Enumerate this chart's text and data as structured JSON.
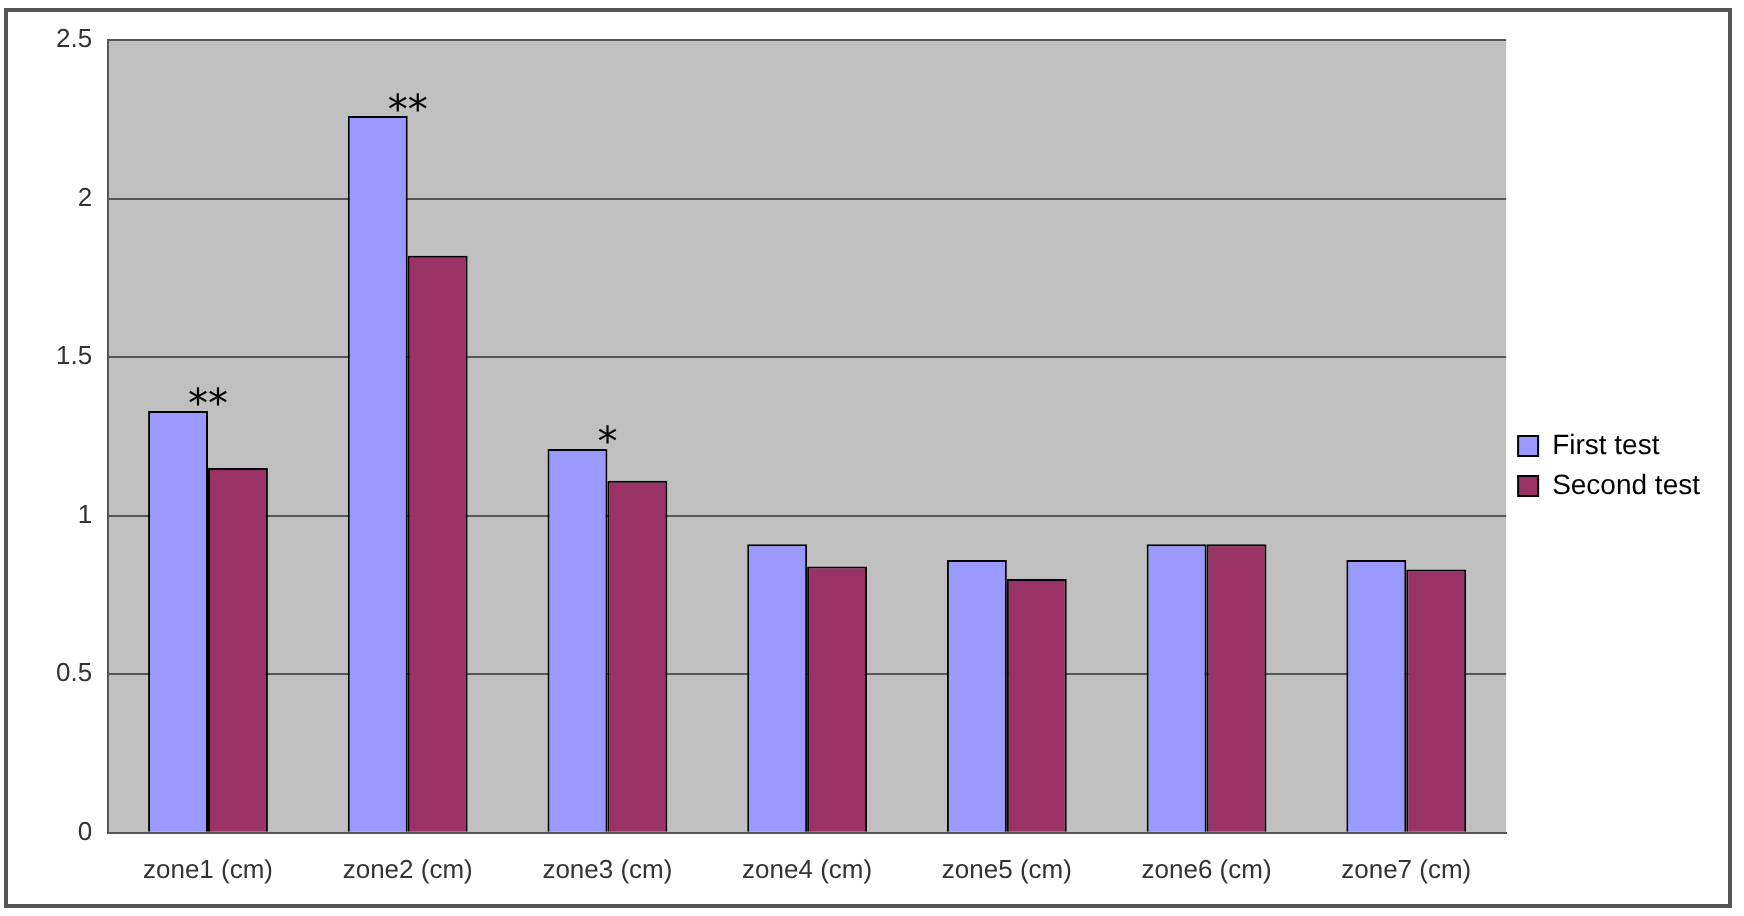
{
  "chart_data": {
    "type": "bar",
    "categories": [
      "zone1 (cm)",
      "zone2 (cm)",
      "zone3 (cm)",
      "zone4 (cm)",
      "zone5 (cm)",
      "zone6 (cm)",
      "zone7 (cm)"
    ],
    "series": [
      {
        "name": "First test",
        "color": "#9999ff",
        "values": [
          1.33,
          2.26,
          1.21,
          0.91,
          0.86,
          0.91,
          0.86
        ]
      },
      {
        "name": "Second test",
        "color": "#993366",
        "values": [
          1.15,
          1.82,
          1.11,
          0.84,
          0.8,
          0.91,
          0.83
        ]
      }
    ],
    "ylim": [
      0,
      2.5
    ],
    "yticks": [
      0,
      0.5,
      1,
      1.5,
      2,
      2.5
    ],
    "grid": "y",
    "legend": "right",
    "annotations": [
      {
        "text": "**",
        "x": "zone1 (cm)",
        "y": 1.33
      },
      {
        "text": "**",
        "x": "zone2 (cm)",
        "y": 2.26
      },
      {
        "text": "*",
        "x": "zone3 (cm)",
        "y": 1.21
      }
    ]
  }
}
